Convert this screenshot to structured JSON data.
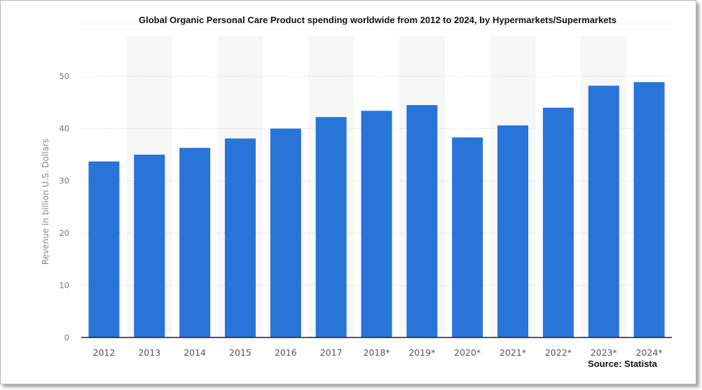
{
  "chart_data": {
    "type": "bar",
    "title": "Global Organic Personal Care Product spending worldwide from 2012 to 2024, by Hypermarkets/Supermarkets",
    "xlabel": "",
    "ylabel": "Revenue in billion U.S. Dollars",
    "categories": [
      "2012",
      "2013",
      "2014",
      "2015",
      "2016",
      "2017",
      "2018*",
      "2019*",
      "2020*",
      "2021*",
      "2022*",
      "2023*",
      "2024*"
    ],
    "values": [
      33.7,
      35.0,
      36.3,
      38.1,
      40.0,
      42.2,
      43.4,
      44.5,
      38.3,
      40.6,
      44.0,
      48.2,
      48.9
    ],
    "ylim": [
      0,
      60
    ],
    "yticks": [
      "0",
      "10",
      "20",
      "30",
      "40",
      "50"
    ],
    "grid": true,
    "legend": "none",
    "bar_color": "#2874d9",
    "source": "Source: Statista"
  }
}
